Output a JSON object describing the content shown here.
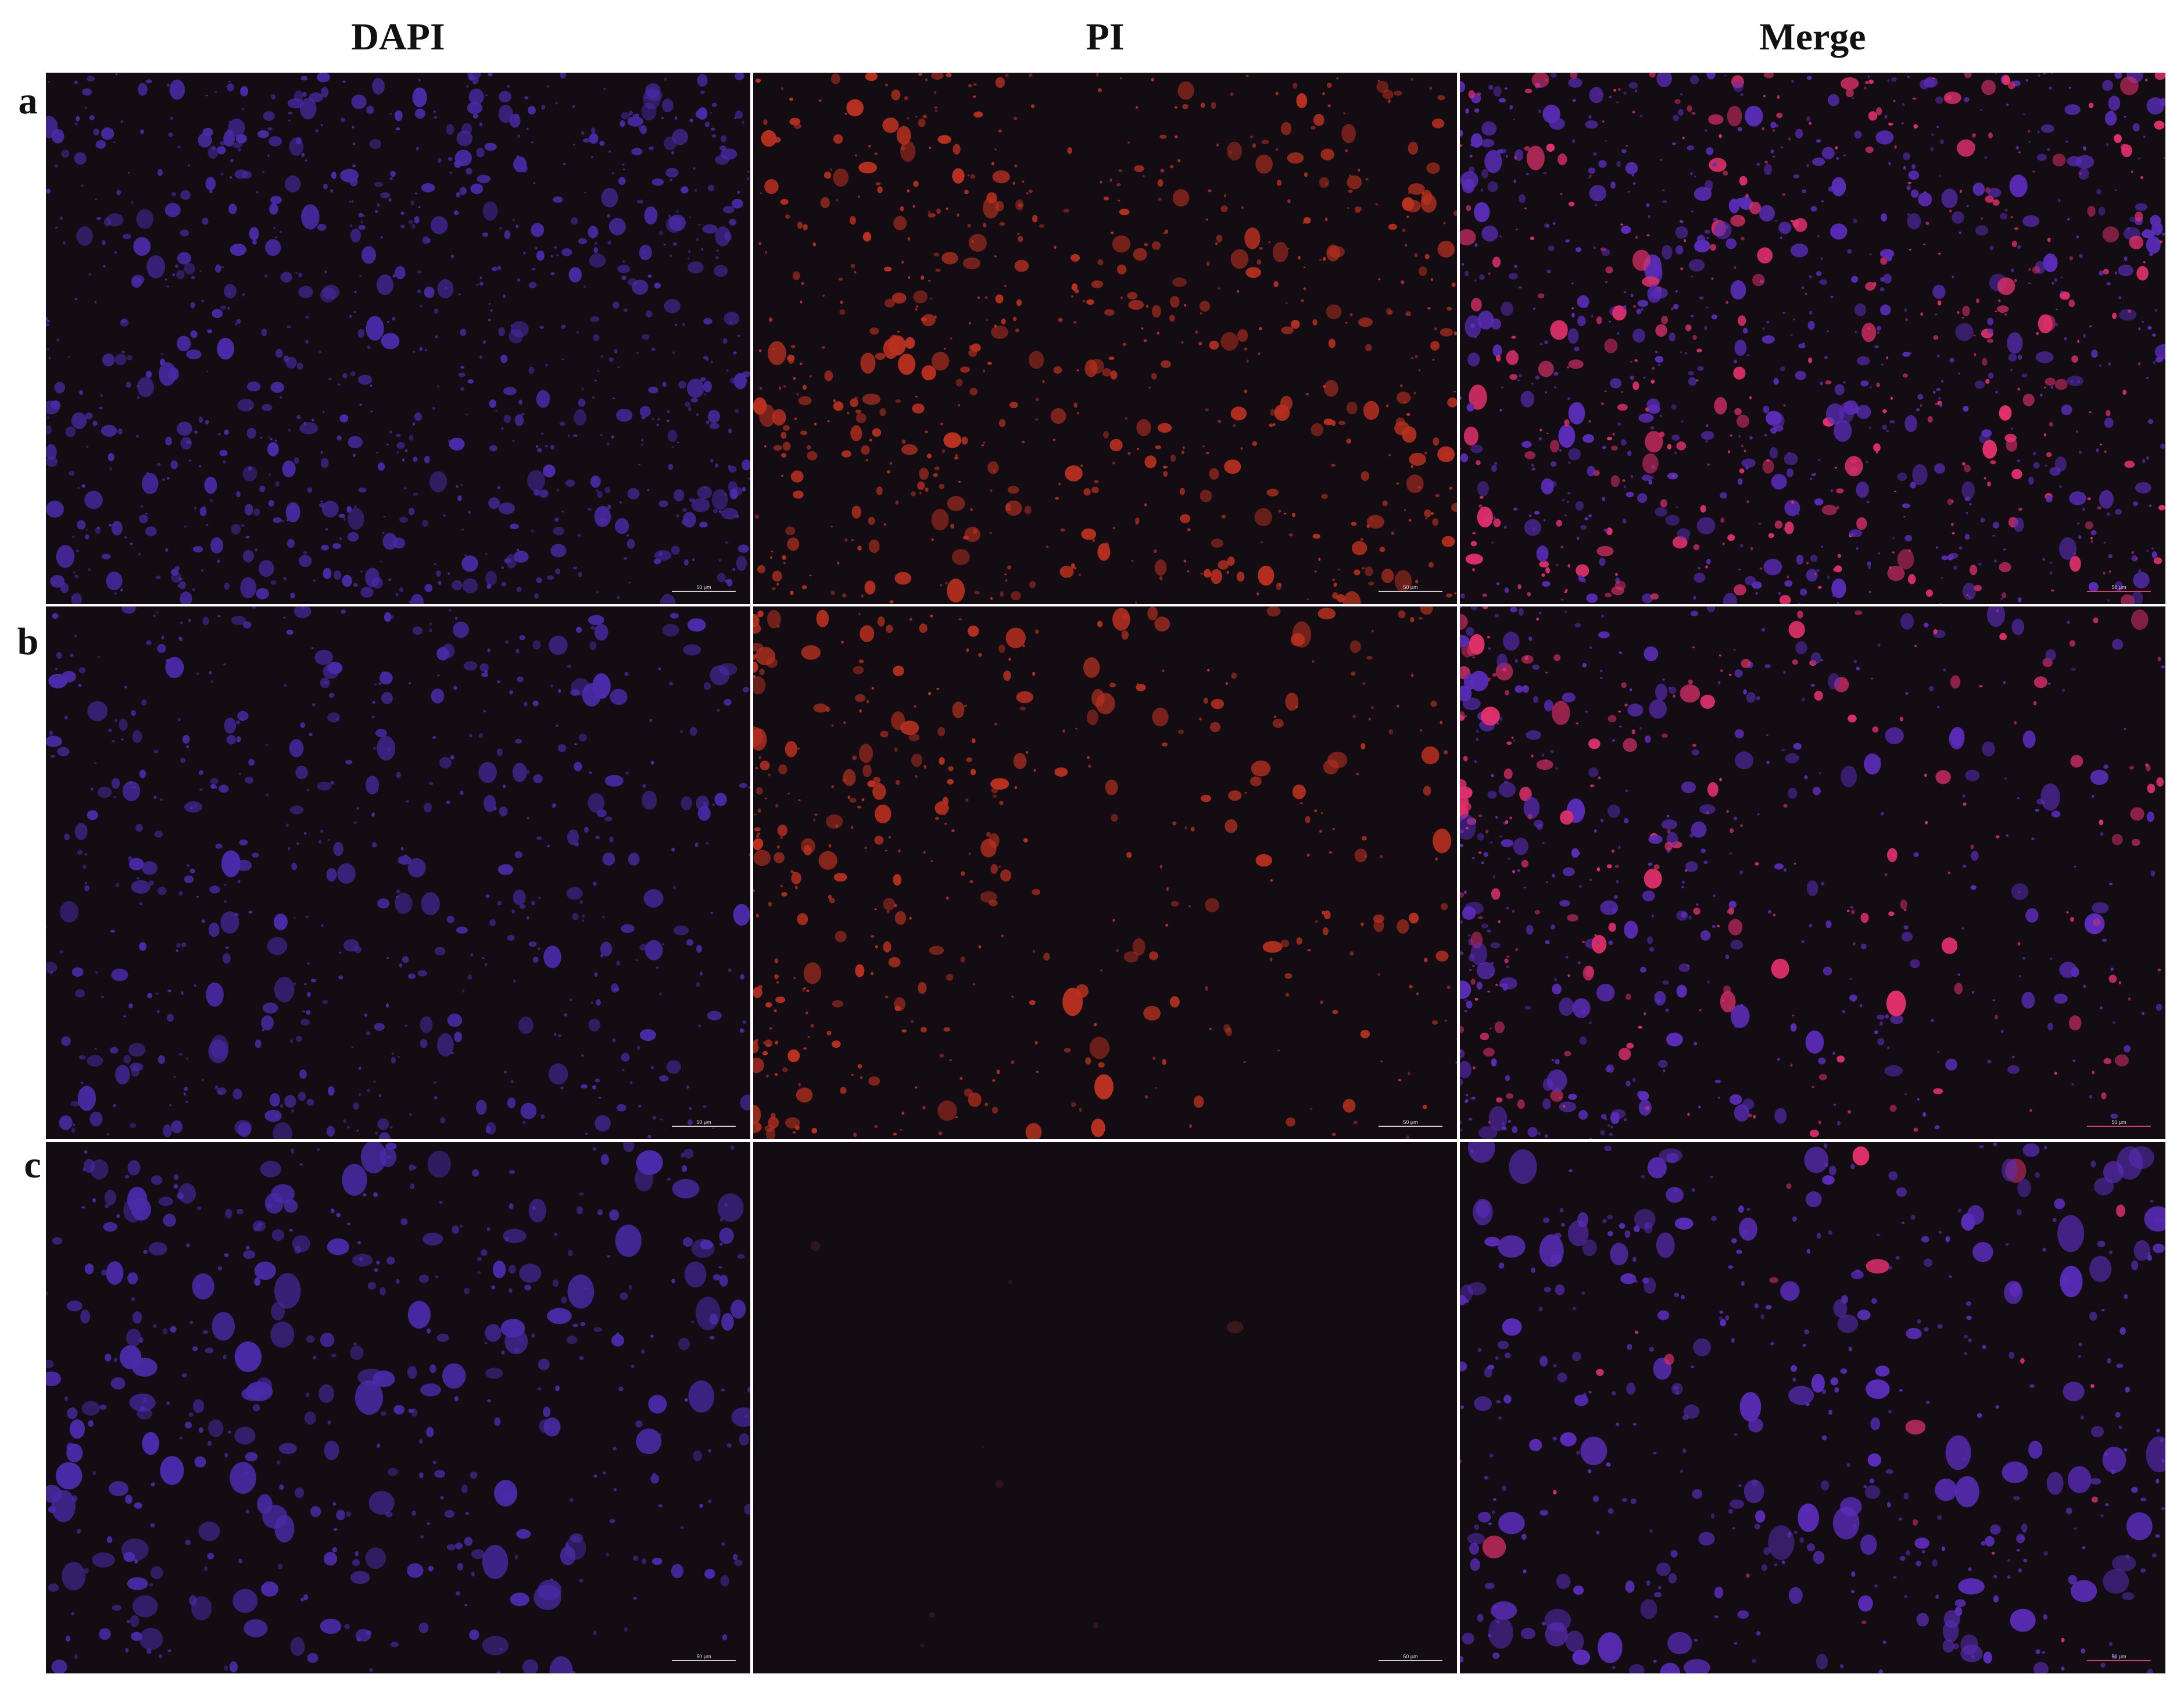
{
  "figure": {
    "columns": [
      "DAPI",
      "PI",
      "Merge"
    ],
    "rows": [
      "a",
      "b",
      "c"
    ],
    "scale_bar": "50 μm"
  }
}
